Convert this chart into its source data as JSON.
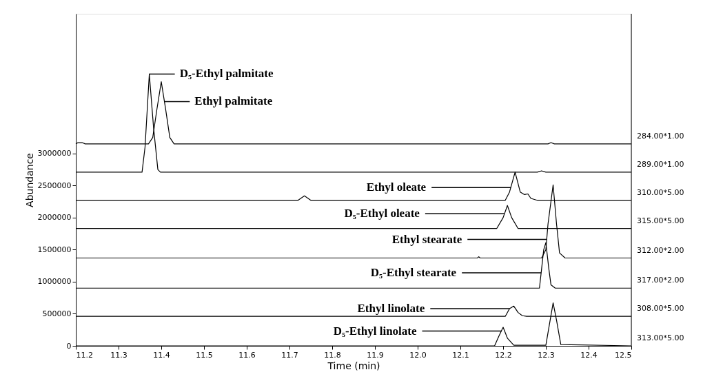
{
  "chart_data": {
    "type": "line",
    "xlabel": "Time (min)",
    "ylabel": "Abundance",
    "xlim": [
      11.2,
      12.5
    ],
    "ylim": [
      0,
      5180000
    ],
    "xticks": [
      11.2,
      11.3,
      11.4,
      11.5,
      11.6,
      11.7,
      11.8,
      11.9,
      {
        "value": 12.0,
        "label": "12.0"
      },
      12.1,
      12.2,
      12.3,
      12.4,
      12.5
    ],
    "yticks": [
      0,
      500000,
      1000000,
      1500000,
      2000000,
      2500000,
      3000000
    ],
    "grid": false,
    "series": [
      {
        "name": "284.00*1.00",
        "color": "#000000",
        "x": [
          11.2,
          11.205,
          11.215,
          11.222,
          11.37,
          11.38,
          11.39,
          11.4,
          11.41,
          11.42,
          11.43,
          12.305,
          12.312,
          12.32,
          12.5
        ],
        "values": [
          3150000,
          3170000,
          3170000,
          3150000,
          3150000,
          3250000,
          3700000,
          4120000,
          3700000,
          3250000,
          3150000,
          3150000,
          3170000,
          3150000,
          3150000
        ]
      },
      {
        "name": "289.00*1.00",
        "color": "#000000",
        "x": [
          11.2,
          11.355,
          11.362,
          11.372,
          11.382,
          11.392,
          11.398,
          12.28,
          12.29,
          12.3,
          12.5
        ],
        "values": [
          2710000,
          2710000,
          3100000,
          4240000,
          3400000,
          2750000,
          2710000,
          2710000,
          2730000,
          2710000,
          2710000
        ]
      },
      {
        "name": "310.00*5.00",
        "color": "#000000",
        "x": [
          11.2,
          11.72,
          11.735,
          11.75,
          12.205,
          12.215,
          12.228,
          12.24,
          12.25,
          12.258,
          12.265,
          12.28,
          12.5
        ],
        "values": [
          2270000,
          2270000,
          2340000,
          2270000,
          2270000,
          2400000,
          2710000,
          2400000,
          2360000,
          2370000,
          2300000,
          2270000,
          2270000
        ]
      },
      {
        "name": "315.00*5.00",
        "color": "#000000",
        "x": [
          11.2,
          12.185,
          12.2,
          12.21,
          12.22,
          12.235,
          12.5
        ],
        "values": [
          1830000,
          1830000,
          2000000,
          2190000,
          2000000,
          1830000,
          1830000
        ]
      },
      {
        "name": "312.00*2.00",
        "color": "#000000",
        "x": [
          11.2,
          12.14,
          12.143,
          12.146,
          12.29,
          12.3,
          12.305,
          12.317,
          12.325,
          12.332,
          12.345,
          12.5
        ],
        "values": [
          1370000,
          1370000,
          1390000,
          1370000,
          1370000,
          1500000,
          1900000,
          2510000,
          1900000,
          1450000,
          1370000,
          1370000
        ]
      },
      {
        "name": "317.00*2.00",
        "color": "#000000",
        "x": [
          11.2,
          12.285,
          12.29,
          12.295,
          12.3,
          12.307,
          12.312,
          12.322,
          12.5
        ],
        "values": [
          900000,
          900000,
          1200000,
          1500000,
          1610000,
          1200000,
          950000,
          900000,
          900000
        ]
      },
      {
        "name": "308.00*5.00",
        "color": "#000000",
        "x": [
          11.2,
          12.205,
          12.215,
          12.225,
          12.235,
          12.245,
          12.255,
          12.5
        ],
        "values": [
          460000,
          460000,
          580000,
          620000,
          520000,
          470000,
          460000,
          460000
        ]
      },
      {
        "name": "313.00*5.00",
        "color": "#000000",
        "x": [
          11.2,
          12.18,
          12.19,
          12.2,
          12.21,
          12.225,
          12.3,
          12.31,
          12.317,
          12.325,
          12.335,
          12.5
        ],
        "values": [
          0,
          0,
          150000,
          290000,
          120000,
          10000,
          10000,
          400000,
          670000,
          400000,
          20000,
          0
        ]
      }
    ],
    "annotations": [
      {
        "text": "D₅-Ethyl palmitate",
        "x": 11.372,
        "y": 4240000
      },
      {
        "text": "Ethyl palmitate",
        "x": 11.407,
        "y": 3810000
      },
      {
        "text": "Ethyl oleate",
        "x": 12.218,
        "y": 2470000
      },
      {
        "text": "D₅-Ethyl oleate",
        "x": 12.203,
        "y": 2060000
      },
      {
        "text": "Ethyl stearate",
        "x": 12.302,
        "y": 1660000
      },
      {
        "text": "D₅-Ethyl stearate",
        "x": 12.289,
        "y": 1140000
      },
      {
        "text": "Ethyl linolate",
        "x": 12.215,
        "y": 580000
      },
      {
        "text": "D₅-Ethyl linolate",
        "x": 12.196,
        "y": 230000
      }
    ]
  }
}
